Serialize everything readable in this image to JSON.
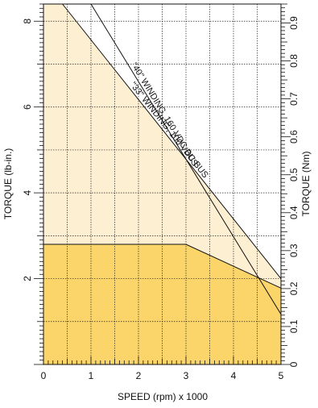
{
  "chart_data": {
    "type": "area",
    "xlabel": "SPEED (rpm) x 1000",
    "ylabel": "TORQUE (lb-in.)",
    "y2label": "TORQUE (Nm)",
    "xlim": [
      0,
      5
    ],
    "ylim": [
      0,
      8.4
    ],
    "y2lim": [
      0,
      0.95
    ],
    "x_ticks": [
      "0",
      "1",
      "2",
      "3",
      "4",
      "5"
    ],
    "y_ticks": [
      "2",
      "4",
      "6",
      "8"
    ],
    "y2_ticks": [
      "0",
      "0.1",
      "0.2",
      "0.3",
      "0.4",
      "0.5",
      "0.6",
      "0.7",
      "0.8",
      "0.9"
    ],
    "grid": true,
    "colors": {
      "continuous_region": "#fcd56a",
      "intermittent_region": "#fdefd2",
      "lines": "#111111"
    },
    "series": [
      {
        "name": "\"33\" WINDING, 100 VDC BUS",
        "x": [
          0.4,
          5.0
        ],
        "y": [
          8.4,
          2.0
        ]
      },
      {
        "name": "\"40\" WINDING, 160 VDC BUS",
        "x": [
          1.0,
          5.0
        ],
        "y": [
          8.4,
          1.17
        ]
      },
      {
        "name": "",
        "x": [
          0,
          3.0,
          5.0
        ],
        "y": [
          2.8,
          2.8,
          1.78
        ]
      }
    ]
  }
}
